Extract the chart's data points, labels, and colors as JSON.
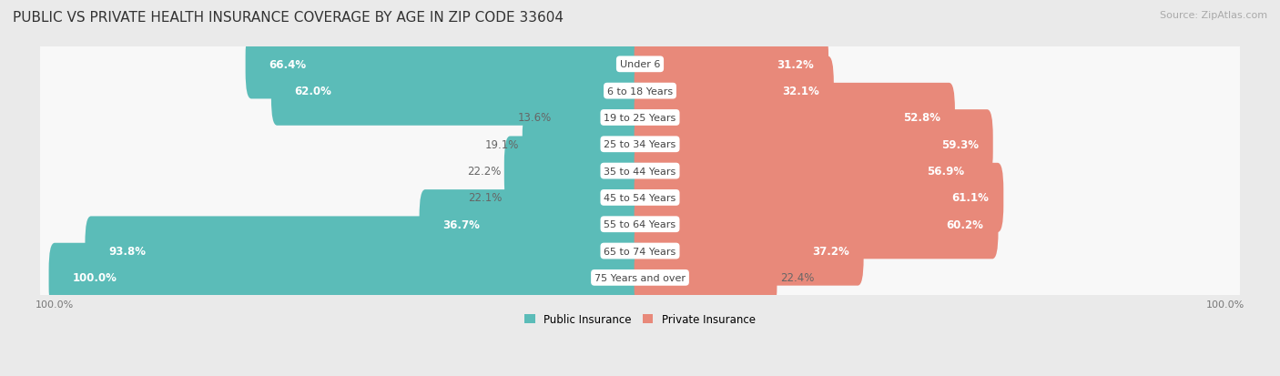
{
  "title": "PUBLIC VS PRIVATE HEALTH INSURANCE COVERAGE BY AGE IN ZIP CODE 33604",
  "source": "Source: ZipAtlas.com",
  "categories": [
    "Under 6",
    "6 to 18 Years",
    "19 to 25 Years",
    "25 to 34 Years",
    "35 to 44 Years",
    "45 to 54 Years",
    "55 to 64 Years",
    "65 to 74 Years",
    "75 Years and over"
  ],
  "public_values": [
    66.4,
    62.0,
    13.6,
    19.1,
    22.2,
    22.1,
    36.7,
    93.8,
    100.0
  ],
  "private_values": [
    31.2,
    32.1,
    52.8,
    59.3,
    56.9,
    61.1,
    60.2,
    37.2,
    22.4
  ],
  "public_color": "#5bbcb8",
  "private_color": "#e8897a",
  "public_label": "Public Insurance",
  "private_label": "Private Insurance",
  "background_color": "#eaeaea",
  "bar_bg_color": "#f8f8f8",
  "max_value": 100.0,
  "title_fontsize": 11,
  "source_fontsize": 8,
  "label_fontsize": 8.5,
  "tick_fontsize": 8,
  "inside_label_threshold": 30
}
